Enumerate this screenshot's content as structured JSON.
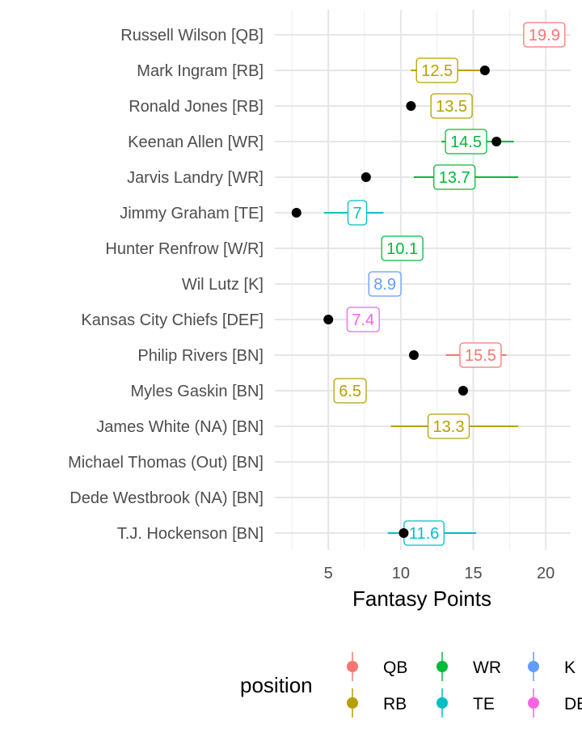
{
  "chart_data": {
    "type": "scatter",
    "xlabel": "Fantasy Points",
    "xlim": [
      2.2,
      22
    ],
    "xticks": [
      5,
      10,
      15,
      20
    ],
    "grid": true,
    "players": [
      {
        "name": "Russell Wilson [QB]",
        "position": "QB",
        "projection": 19.9,
        "range": null,
        "actual": null
      },
      {
        "name": "Mark Ingram [RB]",
        "position": "RB",
        "projection": 12.5,
        "range": [
          10.7,
          15.8
        ],
        "actual": 15.8
      },
      {
        "name": "Ronald Jones [RB]",
        "position": "RB",
        "projection": 13.5,
        "range": null,
        "actual": 10.7
      },
      {
        "name": "Keenan Allen [WR]",
        "position": "WR",
        "projection": 14.5,
        "range": [
          12.8,
          17.8
        ],
        "actual": 16.6
      },
      {
        "name": "Jarvis Landry [WR]",
        "position": "WR",
        "projection": 13.7,
        "range": [
          10.9,
          18.1
        ],
        "actual": 7.6
      },
      {
        "name": "Jimmy Graham [TE]",
        "position": "TE",
        "projection": 7,
        "range": [
          4.7,
          8.8
        ],
        "actual": 2.8
      },
      {
        "name": "Hunter Renfrow [W/R]",
        "position": "WR",
        "projection": 10.1,
        "range": null,
        "actual": null
      },
      {
        "name": "Wil Lutz [K]",
        "position": "K",
        "projection": 8.9,
        "range": null,
        "actual": null
      },
      {
        "name": "Kansas City Chiefs [DEF]",
        "position": "DEF",
        "projection": 7.4,
        "range": null,
        "actual": 5.0
      },
      {
        "name": "Philip Rivers [BN]",
        "position": "QB",
        "projection": 15.5,
        "range": [
          13.1,
          17.3
        ],
        "actual": 10.9
      },
      {
        "name": "Myles Gaskin [BN]",
        "position": "RB",
        "projection": 6.5,
        "range": null,
        "actual": 14.3
      },
      {
        "name": "James White (NA) [BN]",
        "position": "RB",
        "projection": 13.3,
        "range": [
          9.3,
          18.1
        ],
        "actual": null
      },
      {
        "name": "Michael Thomas (Out) [BN]",
        "position": "WR",
        "projection": null,
        "range": null,
        "actual": null
      },
      {
        "name": "Dede Westbrook (NA) [BN]",
        "position": "WR",
        "projection": null,
        "range": null,
        "actual": null
      },
      {
        "name": "T.J. Hockenson [BN]",
        "position": "TE",
        "projection": 11.6,
        "range": [
          9.1,
          15.2
        ],
        "actual": 10.2
      }
    ],
    "legend": {
      "title": "position",
      "placement": "bottom",
      "items": [
        {
          "label": "QB",
          "color": "#F8766D"
        },
        {
          "label": "RB",
          "color": "#B79F00"
        },
        {
          "label": "WR",
          "color": "#00BA38"
        },
        {
          "label": "TE",
          "color": "#00BFC4"
        },
        {
          "label": "K",
          "color": "#619CFF"
        },
        {
          "label": "DEF",
          "color": "#F564E3"
        }
      ]
    },
    "colors": {
      "QB": "#F8766D",
      "RB": "#B79F00",
      "WR": "#00BA38",
      "TE": "#00BFC4",
      "K": "#619CFF",
      "DEF": "#F564E3"
    }
  }
}
